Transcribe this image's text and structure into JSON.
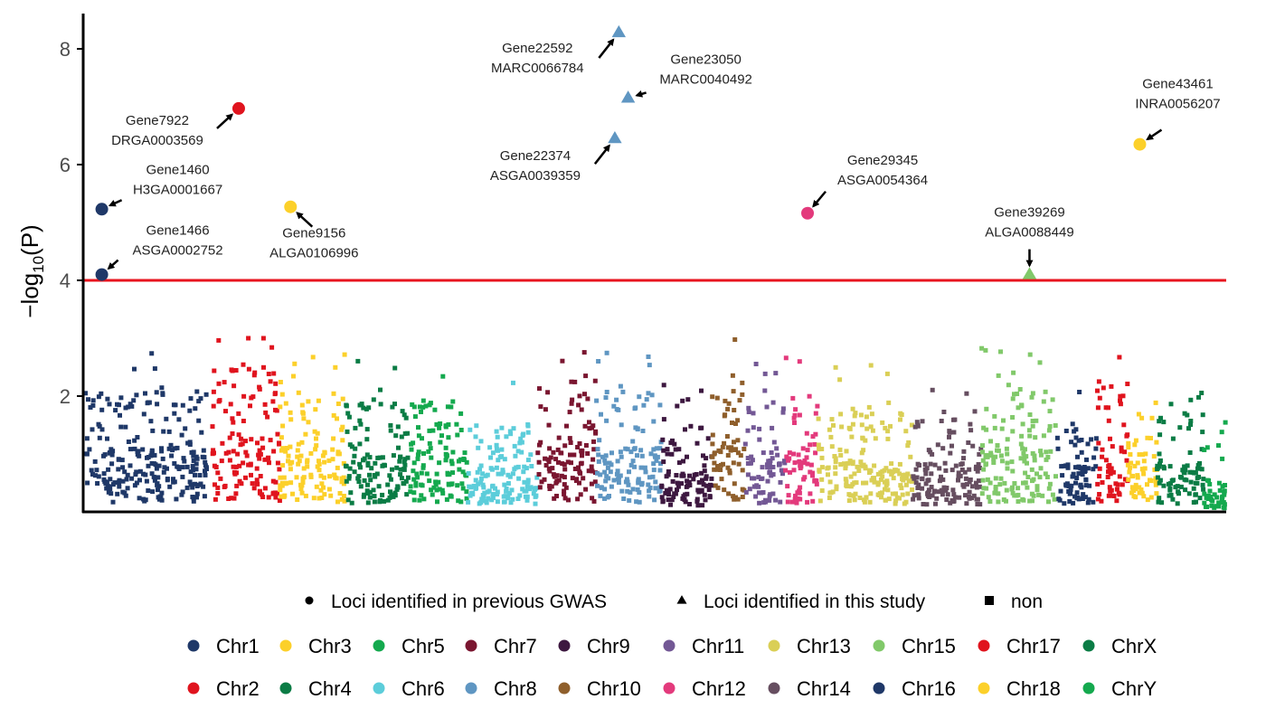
{
  "chart_data": {
    "type": "scatter",
    "title": "",
    "xlabel": "",
    "ylabel_main": "−log",
    "ylabel_sub": "10",
    "ylabel_tail": "(P)",
    "ylim": [
      0,
      8.6
    ],
    "yticks": [
      2,
      4,
      6,
      8
    ],
    "threshold": 4,
    "grid": false,
    "legend_position": "bottom",
    "chromosomes": [
      {
        "name": "Chr1",
        "color": "#1F3868",
        "span": [
          0,
          9.3
        ],
        "level": 1.1
      },
      {
        "name": "Chr2",
        "color": "#E0141E",
        "span": [
          9.7,
          14.8
        ],
        "level": 1.3
      },
      {
        "name": "Chr3",
        "color": "#FCD02A",
        "span": [
          14.8,
          19.7
        ],
        "level": 1.1
      },
      {
        "name": "Chr4",
        "color": "#0B7C45",
        "span": [
          19.7,
          24.5
        ],
        "level": 1.0
      },
      {
        "name": "Chr5",
        "color": "#14A94E",
        "span": [
          24.5,
          28.9
        ],
        "level": 1.05
      },
      {
        "name": "Chr6",
        "color": "#5CCDDA",
        "span": [
          28.9,
          34.2
        ],
        "level": 0.8
      },
      {
        "name": "Chr7",
        "color": "#7A1630",
        "span": [
          34.2,
          38.6
        ],
        "level": 1.2
      },
      {
        "name": "Chr8",
        "color": "#5F96C2",
        "span": [
          38.6,
          43.5
        ],
        "level": 1.1
      },
      {
        "name": "Chr9",
        "color": "#3D1840",
        "span": [
          43.5,
          47.3
        ],
        "level": 0.7
      },
      {
        "name": "Chr10",
        "color": "#8F5F2C",
        "span": [
          47.3,
          49.8
        ],
        "level": 1.3
      },
      {
        "name": "Chr11",
        "color": "#735895",
        "span": [
          49.8,
          52.8
        ],
        "level": 1.0
      },
      {
        "name": "Chr12",
        "color": "#E33A7C",
        "span": [
          52.8,
          55.3
        ],
        "level": 1.0
      },
      {
        "name": "Chr13",
        "color": "#DACF56",
        "span": [
          55.3,
          62.4
        ],
        "level": 0.9
      },
      {
        "name": "Chr14",
        "color": "#664E60",
        "span": [
          62.4,
          67.6
        ],
        "level": 0.85
      },
      {
        "name": "Chr15",
        "color": "#81C96A",
        "span": [
          67.6,
          73.3
        ],
        "level": 1.1
      },
      {
        "name": "Chr16",
        "color": "#1F3868",
        "span": [
          73.3,
          76.3
        ],
        "level": 0.8
      },
      {
        "name": "Chr17",
        "color": "#E0141E",
        "span": [
          76.3,
          78.6
        ],
        "level": 1.2
      },
      {
        "name": "Chr18",
        "color": "#FCD02A",
        "span": [
          78.6,
          80.8
        ],
        "level": 1.0
      },
      {
        "name": "ChrX",
        "color": "#0B7C45",
        "span": [
          80.8,
          84.3
        ],
        "level": 0.9
      },
      {
        "name": "ChrY",
        "color": "#14A94E",
        "span": [
          84.3,
          86.0
        ],
        "level": 0.3
      }
    ],
    "highlighted_loci": [
      {
        "gene": "Gene1460",
        "snp": "H3GA0001667",
        "x": 1.4,
        "y": 5.23,
        "shape": "circle",
        "color": "#1F3868",
        "label_side": "right"
      },
      {
        "gene": "Gene1466",
        "snp": "ASGA0002752",
        "x": 1.4,
        "y": 4.1,
        "shape": "circle",
        "color": "#1F3868",
        "label_side": "right"
      },
      {
        "gene": "Gene7922",
        "snp": "DRGA0003569",
        "x": 11.7,
        "y": 6.97,
        "shape": "circle",
        "color": "#E0141E",
        "label_side": "left"
      },
      {
        "gene": "Gene9156",
        "snp": "ALGA0106996",
        "x": 15.6,
        "y": 5.27,
        "shape": "circle",
        "color": "#FCD02A",
        "label_side": "below"
      },
      {
        "gene": "Gene22592",
        "snp": "MARC0066784",
        "x": 40.3,
        "y": 8.28,
        "shape": "triangle",
        "color": "#5F96C2",
        "label_side": "left"
      },
      {
        "gene": "Gene23050",
        "snp": "MARC0040492",
        "x": 41.0,
        "y": 7.15,
        "shape": "triangle",
        "color": "#5F96C2",
        "label_side": "right"
      },
      {
        "gene": "Gene22374",
        "snp": "ASGA0039359",
        "x": 40.0,
        "y": 6.45,
        "shape": "triangle",
        "color": "#5F96C2",
        "label_side": "left"
      },
      {
        "gene": "Gene29345",
        "snp": "ASGA0054364",
        "x": 54.5,
        "y": 5.16,
        "shape": "circle",
        "color": "#E33A7C",
        "label_side": "right"
      },
      {
        "gene": "Gene39269",
        "snp": "ALGA0088449",
        "x": 71.2,
        "y": 4.1,
        "shape": "triangle",
        "color": "#81C96A",
        "label_side": "above"
      },
      {
        "gene": "Gene43461",
        "snp": "INRA0056207",
        "x": 79.5,
        "y": 6.35,
        "shape": "circle",
        "color": "#FCD02A",
        "label_side": "right"
      }
    ],
    "shape_legend": [
      {
        "shape": "circle",
        "label": "Loci identified in previous GWAS"
      },
      {
        "shape": "triangle",
        "label": "Loci identified in this study"
      },
      {
        "shape": "square",
        "label": "non"
      }
    ],
    "color_legend": [
      {
        "label": "Chr1",
        "color": "#1F3868"
      },
      {
        "label": "Chr3",
        "color": "#FCD02A"
      },
      {
        "label": "Chr5",
        "color": "#14A94E"
      },
      {
        "label": "Chr7",
        "color": "#7A1630"
      },
      {
        "label": "Chr9",
        "color": "#3D1840"
      },
      {
        "label": "Chr11",
        "color": "#735895"
      },
      {
        "label": "Chr13",
        "color": "#DACF56"
      },
      {
        "label": "Chr15",
        "color": "#81C96A"
      },
      {
        "label": "Chr17",
        "color": "#E0141E"
      },
      {
        "label": "ChrX",
        "color": "#0B7C45"
      },
      {
        "label": "Chr2",
        "color": "#E0141E"
      },
      {
        "label": "Chr4",
        "color": "#0B7C45"
      },
      {
        "label": "Chr6",
        "color": "#5CCDDA"
      },
      {
        "label": "Chr8",
        "color": "#5F96C2"
      },
      {
        "label": "Chr10",
        "color": "#8F5F2C"
      },
      {
        "label": "Chr12",
        "color": "#E33A7C"
      },
      {
        "label": "Chr14",
        "color": "#664E60"
      },
      {
        "label": "Chr16",
        "color": "#1F3868"
      },
      {
        "label": "Chr18",
        "color": "#FCD02A"
      },
      {
        "label": "ChrY",
        "color": "#14A94E"
      }
    ]
  }
}
